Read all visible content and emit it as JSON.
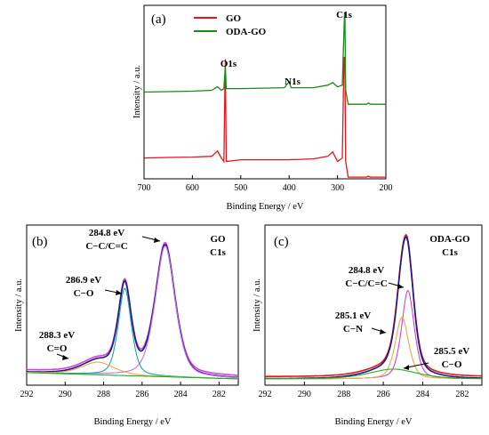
{
  "colors": {
    "gxo": "#e8141a",
    "oda": "#1a8a1a",
    "magenta": "#d63fd6",
    "navy": "#1a1a8c",
    "teal": "#17a8a0",
    "violet": "#c070f0",
    "orange": "#f0a840",
    "green": "#22b022",
    "axis": "#000000"
  },
  "chart_data": [
    {
      "id": "a",
      "type": "line",
      "panel_label": "(a)",
      "xlabel": "Binding Energy / eV",
      "ylabel": "Intensity / a.u.",
      "xlim": [
        700,
        200
      ],
      "x_ticks": [
        700,
        600,
        500,
        400,
        300,
        200
      ],
      "series": [
        {
          "name": "GO",
          "color_key": "gxo",
          "points": [
            [
              700,
              0.12
            ],
            [
              650,
              0.123
            ],
            [
              600,
              0.125
            ],
            [
              560,
              0.13
            ],
            [
              548,
              0.16
            ],
            [
              540,
              0.12
            ],
            [
              535,
              0.1
            ],
            [
              532,
              0.69
            ],
            [
              530,
              0.1
            ],
            [
              500,
              0.11
            ],
            [
              420,
              0.11
            ],
            [
              402,
              0.11
            ],
            [
              350,
              0.115
            ],
            [
              320,
              0.13
            ],
            [
              310,
              0.155
            ],
            [
              300,
              0.1
            ],
            [
              290,
              0.12
            ],
            [
              286.5,
              0.7
            ],
            [
              284.8,
              0.7
            ],
            [
              283,
              0.1
            ],
            [
              278,
              0.01
            ],
            [
              240,
              0.01
            ],
            [
              236,
              0.015
            ],
            [
              232,
              0.01
            ],
            [
              200,
              0.01
            ]
          ]
        },
        {
          "name": "ODA-GO",
          "color_key": "oda",
          "points": [
            [
              700,
              0.5
            ],
            [
              600,
              0.505
            ],
            [
              560,
              0.51
            ],
            [
              548,
              0.53
            ],
            [
              540,
              0.51
            ],
            [
              535,
              0.52
            ],
            [
              532,
              0.65
            ],
            [
              530,
              0.52
            ],
            [
              500,
              0.52
            ],
            [
              410,
              0.525
            ],
            [
              400,
              0.56
            ],
            [
              396,
              0.525
            ],
            [
              350,
              0.525
            ],
            [
              320,
              0.54
            ],
            [
              310,
              0.555
            ],
            [
              300,
              0.53
            ],
            [
              290,
              0.54
            ],
            [
              285.5,
              0.955
            ],
            [
              284.8,
              0.955
            ],
            [
              283,
              0.51
            ],
            [
              278,
              0.43
            ],
            [
              240,
              0.43
            ],
            [
              236,
              0.437
            ],
            [
              232,
              0.43
            ],
            [
              200,
              0.43
            ]
          ]
        }
      ],
      "legend": [
        "GO",
        "ODA-GO"
      ],
      "annotations": [
        {
          "text": "O1s",
          "x": 532
        },
        {
          "text": "N1s",
          "x": 401
        },
        {
          "text": "C1s",
          "x": 288
        }
      ]
    },
    {
      "id": "b",
      "type": "line",
      "panel_label": "(b)",
      "xlabel": "Binding Energy / eV",
      "ylabel": "Intensity / a.u.",
      "xlim": [
        292,
        281
      ],
      "x_ticks": [
        292,
        290,
        288,
        286,
        284,
        282
      ],
      "sample_text": [
        "GO",
        "C1s"
      ],
      "series": [
        {
          "name": "envelope",
          "color_key": "magenta",
          "kind": "sum"
        },
        {
          "name": "fit",
          "color_key": "navy",
          "kind": "sum"
        },
        {
          "name": "284.8 eV C-C/C=C",
          "color_key": "violet",
          "kind": "peak",
          "center": 284.8,
          "height": 0.93,
          "width": 0.55
        },
        {
          "name": "286.9 eV C-O",
          "color_key": "teal",
          "kind": "peak",
          "center": 286.9,
          "height": 0.62,
          "width": 0.36
        },
        {
          "name": "288.3 eV C=O",
          "color_key": "orange",
          "kind": "peak",
          "center": 288.3,
          "height": 0.09,
          "width": 0.9
        },
        {
          "name": "baseline",
          "color_key": "green",
          "kind": "baseline"
        }
      ],
      "baseline": {
        "left": 0.045,
        "right": 0.0
      },
      "annotations": [
        {
          "lines": [
            "284.8 eV",
            "C−C/C=C"
          ]
        },
        {
          "lines": [
            "286.9 eV",
            "C−O"
          ]
        },
        {
          "lines": [
            "288.3 eV",
            "C=O"
          ]
        }
      ]
    },
    {
      "id": "c",
      "type": "line",
      "panel_label": "(c)",
      "xlabel": "Binding Energy / eV",
      "ylabel": "Intensity / a.u.",
      "xlim": [
        292,
        281
      ],
      "x_ticks": [
        292,
        290,
        288,
        286,
        284,
        282
      ],
      "sample_text": [
        "ODA-GO",
        "C1s"
      ],
      "series": [
        {
          "name": "envelope",
          "color_key": "gxo",
          "kind": "sum"
        },
        {
          "name": "fit",
          "color_key": "navy",
          "kind": "sum"
        },
        {
          "name": "284.8 eV C-C/C=C",
          "color_key": "magenta",
          "kind": "peak",
          "center": 284.75,
          "height": 0.63,
          "width": 0.34
        },
        {
          "name": "285.1 eV C-N",
          "color_key": "orange",
          "kind": "peak",
          "center": 285.05,
          "height": 0.44,
          "width": 0.36
        },
        {
          "name": "285.5 eV C-O",
          "color_key": "green",
          "kind": "peak",
          "center": 285.5,
          "height": 0.07,
          "width": 1.3
        }
      ],
      "baseline": {
        "left": 0.0,
        "right": 0.0
      },
      "annotations": [
        {
          "lines": [
            "284.8 eV",
            "C−C/C=C"
          ]
        },
        {
          "lines": [
            "285.1 eV",
            "C−N"
          ]
        },
        {
          "lines": [
            "285.5 eV",
            "C−O"
          ]
        }
      ]
    }
  ]
}
